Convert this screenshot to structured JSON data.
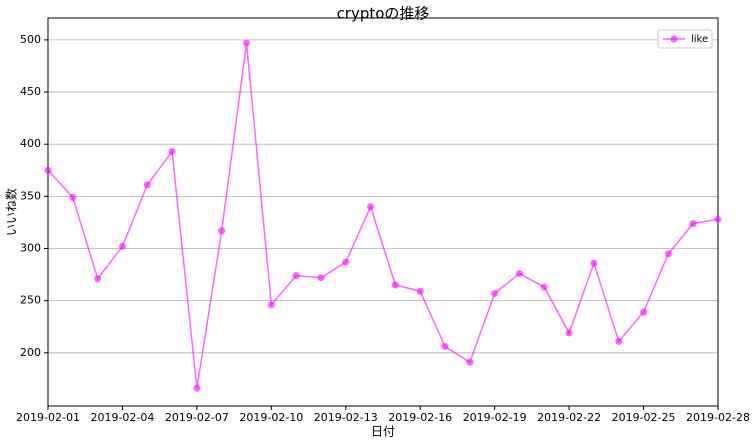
{
  "chart_data": {
    "type": "line",
    "title": "cryptoの推移",
    "x_label": "日付",
    "y_label": "いいね数",
    "x": [
      "2019-02-01",
      "2019-02-02",
      "2019-02-03",
      "2019-02-04",
      "2019-02-05",
      "2019-02-06",
      "2019-02-07",
      "2019-02-08",
      "2019-02-09",
      "2019-02-10",
      "2019-02-11",
      "2019-02-12",
      "2019-02-13",
      "2019-02-14",
      "2019-02-15",
      "2019-02-16",
      "2019-02-17",
      "2019-02-18",
      "2019-02-19",
      "2019-02-20",
      "2019-02-21",
      "2019-02-22",
      "2019-02-23",
      "2019-02-24",
      "2019-02-25",
      "2019-02-26",
      "2019-02-27",
      "2019-02-28"
    ],
    "series": [
      {
        "name": "like",
        "color": "#ff00ff",
        "values": [
          375,
          349,
          271,
          302,
          361,
          393,
          166,
          317,
          497,
          246,
          274,
          272,
          287,
          340,
          265,
          259,
          206,
          191,
          257,
          276,
          263,
          219,
          286,
          211,
          239,
          295,
          324,
          328
        ]
      }
    ],
    "xlim": [
      "2019-02-01",
      "2019-02-28"
    ],
    "xticks": [
      "2019-02-01",
      "2019-02-04",
      "2019-02-07",
      "2019-02-10",
      "2019-02-13",
      "2019-02-16",
      "2019-02-19",
      "2019-02-22",
      "2019-02-25",
      "2019-02-28"
    ],
    "ylim": [
      149,
      521
    ],
    "yticks": [
      200,
      250,
      300,
      350,
      400,
      450,
      500
    ],
    "grid": "y",
    "legend": "upper right"
  }
}
